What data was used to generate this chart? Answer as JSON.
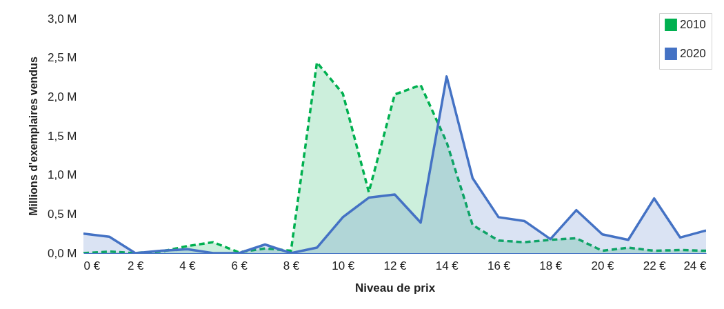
{
  "chart_data": {
    "type": "area",
    "xlabel": "Niveau de prix",
    "ylabel": "Millions d'exemplaires vendus",
    "x": [
      0,
      1,
      2,
      3,
      4,
      5,
      6,
      7,
      8,
      9,
      10,
      11,
      12,
      13,
      14,
      15,
      16,
      17,
      18,
      19,
      20,
      21,
      22,
      23,
      24
    ],
    "series": [
      {
        "name": "2010",
        "color": "#00b050",
        "line_style": "dashed",
        "values": [
          0,
          0.02,
          0,
          0.02,
          0.09,
          0.14,
          0.01,
          0.06,
          0.03,
          2.44,
          2.04,
          0.78,
          2.03,
          2.15,
          1.42,
          0.36,
          0.16,
          0.14,
          0.17,
          0.19,
          0.03,
          0.07,
          0.03,
          0.04,
          0.03
        ]
      },
      {
        "name": "2020",
        "color": "#4472c4",
        "line_style": "solid",
        "values": [
          0.25,
          0.21,
          0,
          0.03,
          0.05,
          0,
          0,
          0.11,
          0,
          0.07,
          0.46,
          0.71,
          0.75,
          0.39,
          2.26,
          0.96,
          0.46,
          0.41,
          0.18,
          0.55,
          0.24,
          0.17,
          0.7,
          0.2,
          0.29
        ]
      }
    ],
    "xlim": [
      0,
      24
    ],
    "xticks": [
      {
        "value": 0,
        "label": "0 €"
      },
      {
        "value": 2,
        "label": "2 €"
      },
      {
        "value": 4,
        "label": "4 €"
      },
      {
        "value": 6,
        "label": "6 €"
      },
      {
        "value": 8,
        "label": "8 €"
      },
      {
        "value": 10,
        "label": "10 €"
      },
      {
        "value": 12,
        "label": "12 €"
      },
      {
        "value": 14,
        "label": "14 €"
      },
      {
        "value": 16,
        "label": "16 €"
      },
      {
        "value": 18,
        "label": "18 €"
      },
      {
        "value": 20,
        "label": "20 €"
      },
      {
        "value": 22,
        "label": "22 €"
      },
      {
        "value": 24,
        "label": "24 €"
      }
    ],
    "ylim": [
      0,
      3
    ],
    "yticks": [
      {
        "value": 0,
        "label": "0,0 M"
      },
      {
        "value": 0.5,
        "label": "0,5 M"
      },
      {
        "value": 1,
        "label": "1,0 M"
      },
      {
        "value": 1.5,
        "label": "1,5 M"
      },
      {
        "value": 2,
        "label": "2,0 M"
      },
      {
        "value": 2.5,
        "label": "2,5 M"
      },
      {
        "value": 3,
        "label": "3,0 M"
      }
    ],
    "grid": false,
    "legend": "top right"
  }
}
